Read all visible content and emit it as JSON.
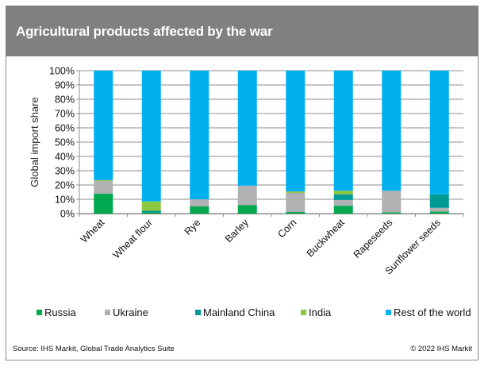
{
  "header": {
    "title": "Agricultural products affected by the war"
  },
  "chart_data": {
    "type": "bar",
    "stacked": true,
    "title": "Agricultural products affected by the war",
    "xlabel": "",
    "ylabel": "Global import share",
    "ylim": [
      0,
      100
    ],
    "yticks": [
      "0%",
      "10%",
      "20%",
      "30%",
      "40%",
      "50%",
      "60%",
      "70%",
      "80%",
      "90%",
      "100%"
    ],
    "grid": true,
    "legend_position": "bottom",
    "categories": [
      "Wheat",
      "Wheat flour",
      "Rye",
      "Barley",
      "Corn",
      "Buckwheat",
      "Rapeseeds",
      "Sunflower seeds"
    ],
    "series": [
      {
        "name": "Russia",
        "color": "#00a94f",
        "values": [
          14,
          0.8,
          5,
          6,
          1.2,
          5.5,
          0.8,
          1.5
        ]
      },
      {
        "name": "Ukraine",
        "color": "#b0b1b3",
        "values": [
          9,
          0,
          5,
          13.5,
          13.3,
          4,
          15.2,
          2.5
        ]
      },
      {
        "name": "Mainland China",
        "color": "#009a93",
        "values": [
          0,
          1.2,
          0,
          0,
          0,
          4,
          0,
          9.5
        ]
      },
      {
        "name": "India",
        "color": "#8dc63f",
        "values": [
          0.5,
          6.5,
          0,
          0,
          1,
          2.5,
          0,
          0
        ]
      },
      {
        "name": "Rest of the world",
        "color": "#00b0ef",
        "values": [
          76.5,
          91.5,
          90,
          80.5,
          84.5,
          84,
          84,
          86.5
        ]
      }
    ]
  },
  "footer": {
    "source": "Source: IHS Markit, Global Trade Analytics Suite",
    "copyright": "© 2022 IHS Markit"
  }
}
